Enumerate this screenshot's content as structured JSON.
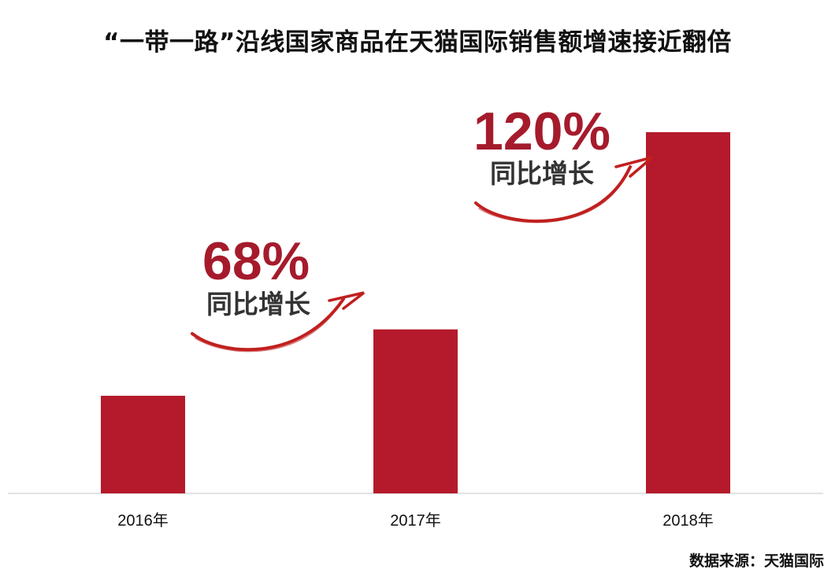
{
  "chart_data": {
    "type": "bar",
    "title": "“一带一路”沿线国家商品在天猫国际销售额增速接近翻倍",
    "categories": [
      "2016年",
      "2017年",
      "2018年"
    ],
    "values": [
      1.0,
      1.68,
      3.7
    ],
    "value_note": "relative sales index (no y-axis shown)",
    "xlabel": "",
    "ylabel": "",
    "ylim": [
      0,
      3.9
    ],
    "grid": false,
    "bar_color": "#b41a2b",
    "annotations": [
      {
        "between": [
          "2016年",
          "2017年"
        ],
        "value": "68%",
        "label": "同比增长"
      },
      {
        "between": [
          "2017年",
          "2018年"
        ],
        "value": "120%",
        "label": "同比增长"
      }
    ],
    "source": "数据来源：天猫国际"
  }
}
